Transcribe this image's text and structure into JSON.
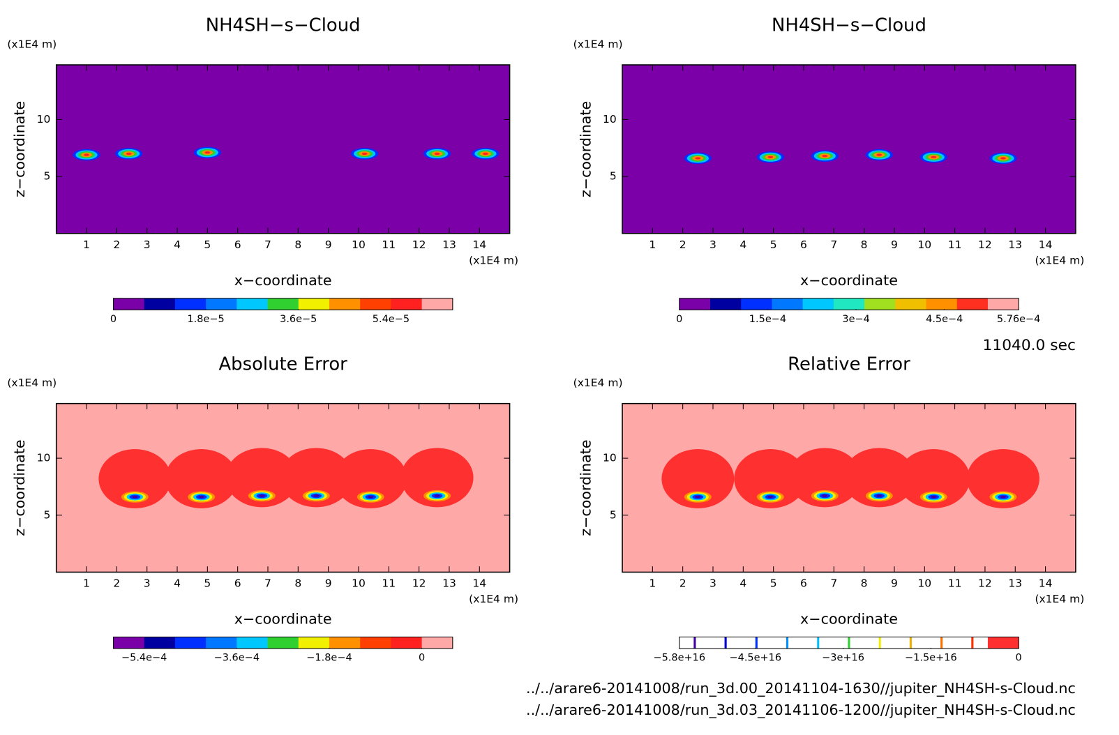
{
  "chart_data": [
    {
      "type": "contour",
      "title": "NH4SH−s−Cloud",
      "xlabel": "x−coordinate",
      "ylabel": "z−coordinate",
      "xunit": "(x1E4 m)",
      "yunit": "(x1E4 m)",
      "xlim": [
        0,
        15
      ],
      "ylim": [
        0,
        14.8
      ],
      "xticks": [
        1,
        2,
        3,
        4,
        5,
        6,
        7,
        8,
        9,
        10,
        11,
        12,
        13,
        14
      ],
      "yticks": [
        5,
        10
      ],
      "background": "#7b00a8",
      "blob_colors": [
        "#0030ff",
        "#00c8ff",
        "#30d030",
        "#ff9000",
        "#ff2020"
      ],
      "features": [
        {
          "x": 1.0,
          "z": 6.9
        },
        {
          "x": 2.4,
          "z": 7.0
        },
        {
          "x": 5.0,
          "z": 7.1
        },
        {
          "x": 10.2,
          "z": 7.0
        },
        {
          "x": 12.6,
          "z": 7.0
        },
        {
          "x": 14.2,
          "z": 7.0
        }
      ],
      "colorbar": {
        "lim": [
          0,
          6.6e-05
        ],
        "colors": [
          "#7a00a8",
          "#0000a0",
          "#0030ff",
          "#0078ff",
          "#00c8ff",
          "#30d030",
          "#f0f000",
          "#ff9000",
          "#ff4000",
          "#ff2020",
          "#ffa8a8"
        ],
        "ticks": [
          0,
          {
            "value": 1.8e-05,
            "label": "1.8e−5"
          },
          {
            "value": 3.6e-05,
            "label": "3.6e−5"
          },
          {
            "value": 5.4e-05,
            "label": "5.4e−5"
          }
        ]
      }
    },
    {
      "type": "contour",
      "title": "NH4SH−s−Cloud",
      "xlabel": "x−coordinate",
      "ylabel": "z−coordinate",
      "xunit": "(x1E4 m)",
      "yunit": "(x1E4 m)",
      "xlim": [
        0,
        15
      ],
      "ylim": [
        0,
        14.8
      ],
      "xticks": [
        1,
        2,
        3,
        4,
        5,
        6,
        7,
        8,
        9,
        10,
        11,
        12,
        13,
        14
      ],
      "yticks": [
        5,
        10
      ],
      "background": "#7b00a8",
      "blob_colors": [
        "#0030ff",
        "#00c8ff",
        "#30d030",
        "#ff9000",
        "#ff2020"
      ],
      "features": [
        {
          "x": 2.5,
          "z": 6.6
        },
        {
          "x": 4.9,
          "z": 6.7
        },
        {
          "x": 6.7,
          "z": 6.8
        },
        {
          "x": 8.5,
          "z": 6.9
        },
        {
          "x": 10.3,
          "z": 6.7
        },
        {
          "x": 12.6,
          "z": 6.6
        }
      ],
      "colorbar": {
        "lim": [
          0,
          0.000576
        ],
        "colors": [
          "#7a00a8",
          "#0000a0",
          "#0030ff",
          "#0078ff",
          "#00c8ff",
          "#20e8c0",
          "#a0e020",
          "#f0c000",
          "#ff9000",
          "#ff3020",
          "#ffa8a8"
        ],
        "ticks": [
          0,
          {
            "value": 0.00015,
            "label": "1.5e−4"
          },
          {
            "value": 0.0003,
            "label": "3e−4"
          },
          {
            "value": 0.00045,
            "label": "4.5e−4"
          },
          {
            "value": 0.000576,
            "label": "5.76e−4"
          }
        ]
      }
    },
    {
      "type": "contour",
      "title": "Absolute Error",
      "xlabel": "x−coordinate",
      "ylabel": "z−coordinate",
      "xunit": "(x1E4 m)",
      "yunit": "(x1E4 m)",
      "xlim": [
        0,
        15
      ],
      "ylim": [
        0,
        14.8
      ],
      "xticks": [
        1,
        2,
        3,
        4,
        5,
        6,
        7,
        8,
        9,
        10,
        11,
        12,
        13,
        14
      ],
      "yticks": [
        5,
        10
      ],
      "background": "#ffa8a8",
      "region_color": "#ff3030",
      "blob_colors": [
        "#ff9000",
        "#f0f000",
        "#00c8ff",
        "#0030ff",
        "#4000a0"
      ],
      "features": [
        {
          "x": 2.6,
          "z": 6.6
        },
        {
          "x": 4.8,
          "z": 6.6
        },
        {
          "x": 6.8,
          "z": 6.7
        },
        {
          "x": 8.6,
          "z": 6.7
        },
        {
          "x": 10.4,
          "z": 6.6
        },
        {
          "x": 12.6,
          "z": 6.7
        }
      ],
      "colorbar": {
        "lim": [
          -0.0006,
          6e-05
        ],
        "colors": [
          "#7a00a8",
          "#0000a0",
          "#0030ff",
          "#0078ff",
          "#00c8ff",
          "#30d030",
          "#f0f000",
          "#ff9000",
          "#ff4000",
          "#ff2020",
          "#ffa8a8"
        ],
        "ticks": [
          {
            "value": -0.00054,
            "label": "−5.4e−4"
          },
          {
            "value": -0.00036,
            "label": "−3.6e−4"
          },
          {
            "value": -0.00018,
            "label": "−1.8e−4"
          },
          0
        ]
      }
    },
    {
      "type": "contour",
      "title": "Relative Error",
      "xlabel": "x−coordinate",
      "ylabel": "z−coordinate",
      "xunit": "(x1E4 m)",
      "yunit": "(x1E4 m)",
      "xlim": [
        0,
        15
      ],
      "ylim": [
        0,
        14.8
      ],
      "xticks": [
        1,
        2,
        3,
        4,
        5,
        6,
        7,
        8,
        9,
        10,
        11,
        12,
        13,
        14
      ],
      "yticks": [
        5,
        10
      ],
      "background": "#ffa8a8",
      "region_color": "#ff3030",
      "blob_colors": [
        "#ff9000",
        "#f0f000",
        "#00c8ff",
        "#0030ff",
        "#4000a0"
      ],
      "features": [
        {
          "x": 2.5,
          "z": 6.6
        },
        {
          "x": 4.9,
          "z": 6.6
        },
        {
          "x": 6.7,
          "z": 6.7
        },
        {
          "x": 8.5,
          "z": 6.7
        },
        {
          "x": 10.3,
          "z": 6.6
        },
        {
          "x": 12.6,
          "z": 6.6
        }
      ],
      "colorbar": {
        "lim": [
          -5.8e+16,
          0
        ],
        "colors": [
          "#ffffff",
          "#ffffff",
          "#ffffff",
          "#ffffff",
          "#ffffff",
          "#ffffff",
          "#ffffff",
          "#ffffff",
          "#ffffff",
          "#ffffff",
          "#ff3030"
        ],
        "line_colors": [
          "#4000a0",
          "#0000c8",
          "#0030ff",
          "#0090ff",
          "#00c0ff",
          "#30d030",
          "#f0f000",
          "#f0b000",
          "#ff7000",
          "#ff3000"
        ],
        "ticks": [
          {
            "value": -5.8e+16,
            "label": "−5.8e+16"
          },
          {
            "value": -4.5e+16,
            "label": "−4.5e+16"
          },
          {
            "value": -3e+16,
            "label": "−3e+16"
          },
          {
            "value": -1.5e+16,
            "label": "−1.5e+16"
          },
          0
        ]
      }
    }
  ],
  "time_label": "11040.0 sec",
  "files": [
    "../../arare6-20141008/run_3d.00_20141104-1630//jupiter_NH4SH-s-Cloud.nc",
    "../../arare6-20141008/run_3d.03_20141106-1200//jupiter_NH4SH-s-Cloud.nc"
  ]
}
